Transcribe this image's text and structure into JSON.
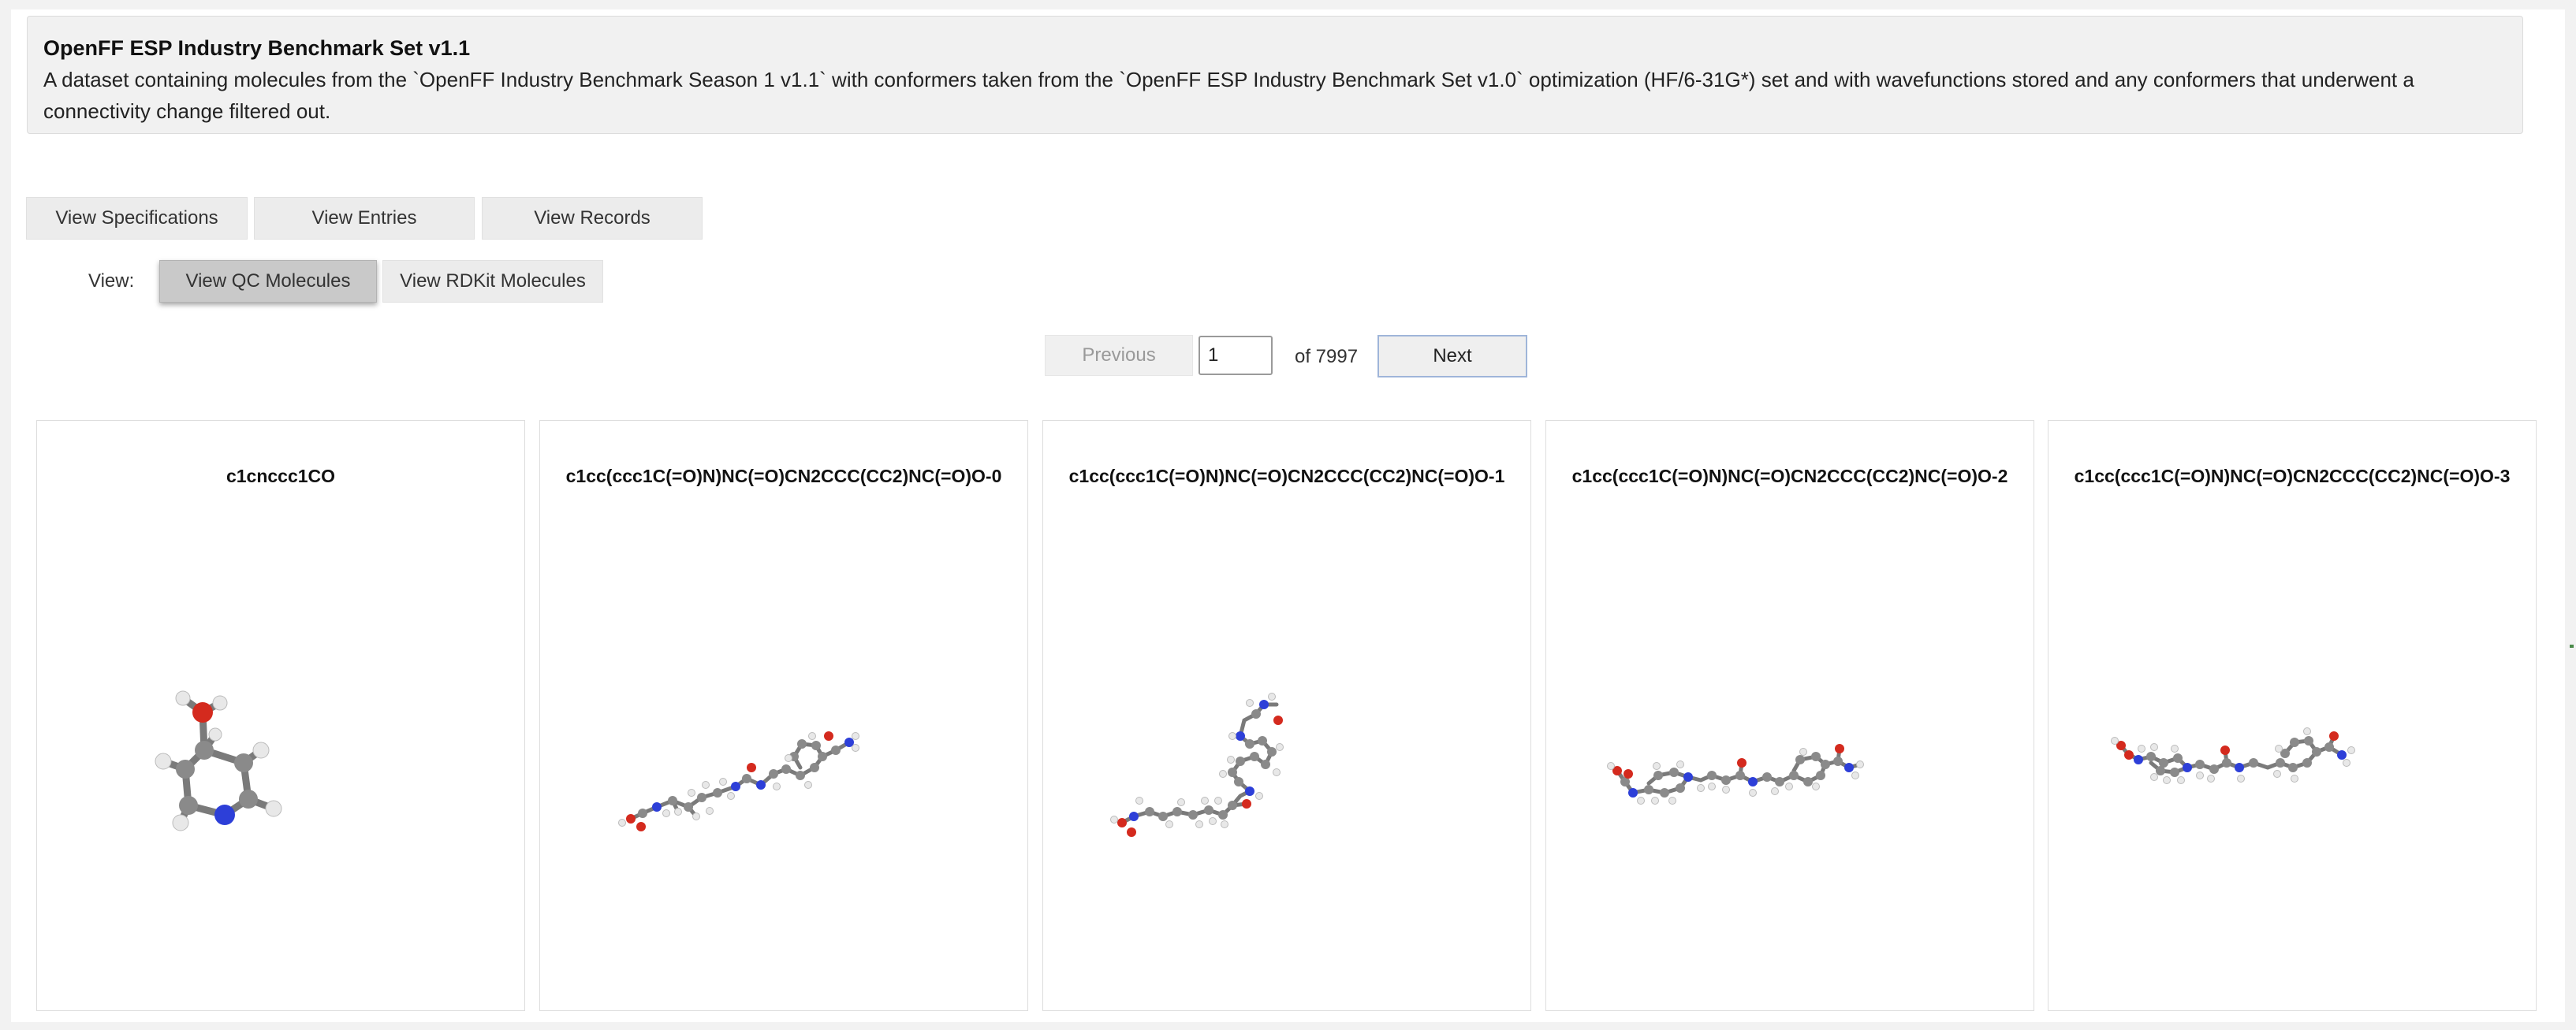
{
  "dataset": {
    "title": "OpenFF ESP Industry Benchmark Set v1.1",
    "description": "A dataset containing molecules from the `OpenFF Industry Benchmark Season 1 v1.1` with conformers taken from the `OpenFF ESP Industry Benchmark Set v1.0` optimization (HF/6-31G*) set and with wavefunctions stored and any conformers that underwent a connectivity change filtered out."
  },
  "tabs": {
    "specifications": "View Specifications",
    "entries": "View Entries",
    "records": "View Records"
  },
  "view": {
    "label": "View:",
    "qc_label": "View QC Molecules",
    "rdkit_label": "View RDKit Molecules",
    "selected": "View QC Molecules"
  },
  "pager": {
    "previous": "Previous",
    "current_page": "1",
    "of_text": "of 7997",
    "next": "Next"
  },
  "molecules": [
    {
      "title": "c1cnccc1CO"
    },
    {
      "title": "c1cc(ccc1C(=O)N)NC(=O)CN2CCC(CC2)NC(=O)O-0"
    },
    {
      "title": "c1cc(ccc1C(=O)N)NC(=O)CN2CCC(CC2)NC(=O)O-1"
    },
    {
      "title": "c1cc(ccc1C(=O)N)NC(=O)CN2CCC(CC2)NC(=O)O-2"
    },
    {
      "title": "c1cc(ccc1C(=O)N)NC(=O)CN2CCC(CC2)NC(=O)O-3"
    }
  ],
  "colors": {
    "carbon": "#8a8a8a",
    "hydrogen": "#e8e8e8",
    "oxygen": "#d42a1e",
    "nitrogen": "#2d3fd8"
  }
}
